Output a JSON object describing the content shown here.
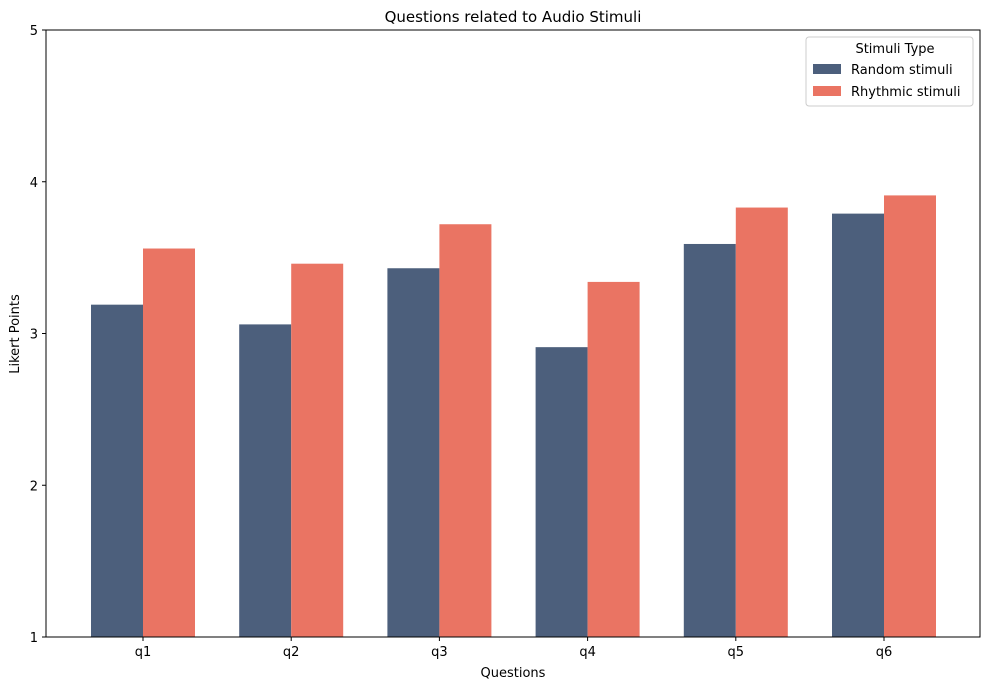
{
  "chart_data": {
    "type": "bar",
    "title": "Questions related to Audio Stimuli",
    "xlabel": "Questions",
    "ylabel": "Likert Points",
    "categories": [
      "q1",
      "q2",
      "q3",
      "q4",
      "q5",
      "q6"
    ],
    "series": [
      {
        "name": "Random stimuli",
        "color": "#4c5f7c",
        "values": [
          3.19,
          3.06,
          3.43,
          2.91,
          3.59,
          3.79
        ]
      },
      {
        "name": "Rhythmic stimuli",
        "color": "#ea7463",
        "values": [
          3.56,
          3.46,
          3.72,
          3.34,
          3.83,
          3.91
        ]
      }
    ],
    "ylim": [
      1,
      5
    ],
    "yticks": [
      "1",
      "2",
      "3",
      "4",
      "5"
    ],
    "grid": false,
    "legend": {
      "title": "Stimuli Type",
      "placement": "top-right"
    }
  }
}
